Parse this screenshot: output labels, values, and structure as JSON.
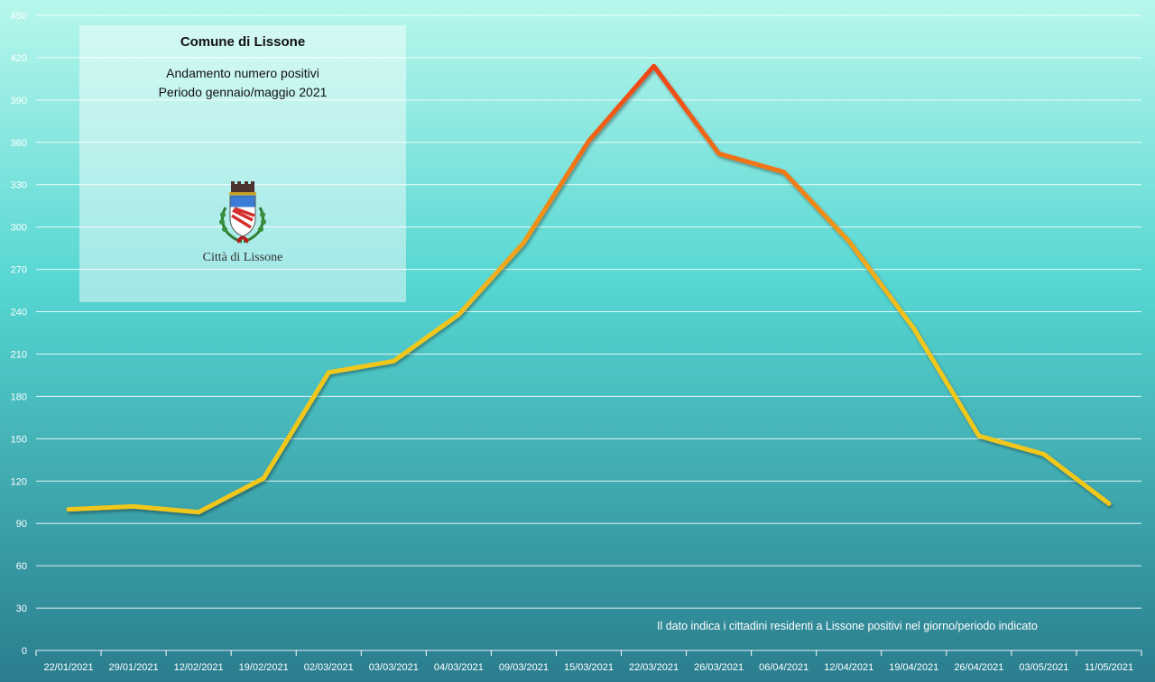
{
  "info_box": {
    "title": "Comune di Lissone",
    "subtitle_line1": "Andamento numero positivi",
    "subtitle_line2": "Periodo gennaio/maggio 2021",
    "crest_label": "Città di Lissone",
    "crest_icon": "coat-of-arms-icon"
  },
  "note": "Il dato indica i cittadini residenti a Lissone positivi nel giorno/periodo indicato",
  "colors": {
    "background_top": "#b8f7ec",
    "background_mid": "#55d6d2",
    "background_bottom": "#2a7d8e",
    "line_low": "#f2c71c",
    "line_high": "#f03a12",
    "grid": "#ffffff"
  },
  "chart_data": {
    "type": "line",
    "title": "",
    "xlabel": "",
    "ylabel": "",
    "ylim": [
      0,
      450
    ],
    "yticks": [
      0,
      30,
      60,
      90,
      120,
      150,
      180,
      210,
      240,
      270,
      300,
      330,
      360,
      390,
      420,
      450
    ],
    "grid": true,
    "legend": "none",
    "categories": [
      "22/01/2021",
      "29/01/2021",
      "12/02/2021",
      "19/02/2021",
      "02/03/2021",
      "03/03/2021",
      "04/03/2021",
      "09/03/2021",
      "15/03/2021",
      "22/03/2021",
      "26/03/2021",
      "06/04/2021",
      "12/04/2021",
      "19/04/2021",
      "26/04/2021",
      "03/05/2021",
      "11/05/2021"
    ],
    "series": [
      {
        "name": "",
        "values": [
          100,
          102,
          98,
          122,
          197,
          205,
          238,
          289,
          361,
          414,
          352,
          339,
          290,
          228,
          152,
          139,
          104
        ]
      }
    ]
  }
}
